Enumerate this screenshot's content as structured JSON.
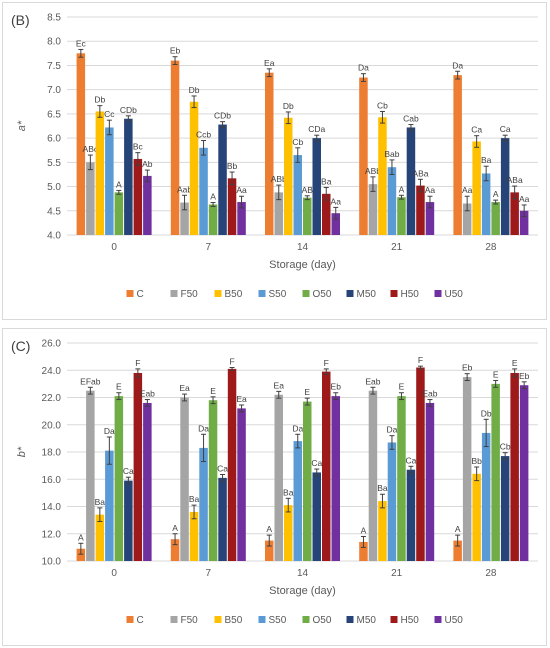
{
  "colors": {
    "C": "#ED7D31",
    "F50": "#A5A5A5",
    "B50": "#FFC000",
    "S50": "#5B9BD5",
    "O50": "#70AD47",
    "M50": "#264478",
    "H50": "#9E1A1A",
    "U50": "#7030A0",
    "grid": "#d9d9d9",
    "text": "#595959",
    "letter": "#404040"
  },
  "chart_data": [
    {
      "type": "bar",
      "panel_label": "(B)",
      "ylabel": "a*",
      "xlabel": "Storage (day)",
      "ylim": [
        4.0,
        8.5
      ],
      "ytick_step": 0.5,
      "ytick_labels": [
        "4.0",
        "4.5",
        "5.0",
        "5.5",
        "6.0",
        "6.5",
        "7.0",
        "7.5",
        "8.0",
        "8.5"
      ],
      "grid": true,
      "legend_position": "bottom",
      "categories": [
        "0",
        "7",
        "14",
        "21",
        "28"
      ],
      "series": [
        {
          "name": "C",
          "values": [
            7.75,
            7.6,
            7.35,
            7.25,
            7.3
          ],
          "errors": [
            0.08,
            0.08,
            0.08,
            0.08,
            0.08
          ],
          "labels": [
            "Ec",
            "Eb",
            "Ea",
            "Da",
            "Da"
          ]
        },
        {
          "name": "F50",
          "values": [
            5.5,
            4.67,
            4.88,
            5.05,
            4.65
          ],
          "errors": [
            0.15,
            0.15,
            0.15,
            0.15,
            0.15
          ],
          "labels": [
            "ABc",
            "Aab",
            "ABb",
            "ABb",
            "Aa"
          ]
        },
        {
          "name": "B50",
          "values": [
            6.55,
            6.75,
            6.42,
            6.43,
            5.93
          ],
          "errors": [
            0.12,
            0.12,
            0.12,
            0.12,
            0.12
          ],
          "labels": [
            "Db",
            "Db",
            "Db",
            "Cb",
            "Ca"
          ]
        },
        {
          "name": "S50",
          "values": [
            6.22,
            5.8,
            5.65,
            5.4,
            5.27
          ],
          "errors": [
            0.15,
            0.15,
            0.15,
            0.15,
            0.15
          ],
          "labels": [
            "Cc",
            "Ccb",
            "Cb",
            "Bab",
            "Ba"
          ]
        },
        {
          "name": "O50",
          "values": [
            4.88,
            4.63,
            4.77,
            4.78,
            4.68
          ],
          "errors": [
            0.04,
            0.04,
            0.04,
            0.04,
            0.04
          ],
          "labels": [
            "A",
            "A",
            "AB",
            "A",
            "A"
          ]
        },
        {
          "name": "M50",
          "values": [
            6.4,
            6.28,
            6.0,
            6.22,
            6.0
          ],
          "errors": [
            0.06,
            0.06,
            0.06,
            0.06,
            0.06
          ],
          "labels": [
            "CDb",
            "CDb",
            "CDa",
            "Cab",
            "Ca"
          ]
        },
        {
          "name": "H50",
          "values": [
            5.57,
            5.17,
            4.85,
            5.02,
            4.88
          ],
          "errors": [
            0.13,
            0.13,
            0.13,
            0.13,
            0.13
          ],
          "labels": [
            "Bc",
            "Bb",
            "Ba",
            "ABa",
            "ABa"
          ]
        },
        {
          "name": "U50",
          "values": [
            5.22,
            4.68,
            4.45,
            4.68,
            4.5
          ],
          "errors": [
            0.12,
            0.12,
            0.12,
            0.12,
            0.12
          ],
          "labels": [
            "Ab",
            "Aa",
            "Aa",
            "Aa",
            "Aa"
          ]
        }
      ]
    },
    {
      "type": "bar",
      "panel_label": "(C)",
      "ylabel": "b*",
      "xlabel": "Storage (day)",
      "ylim": [
        10.0,
        26.0
      ],
      "ytick_step": 2.0,
      "ytick_labels": [
        "10.0",
        "12.0",
        "14.0",
        "16.0",
        "18.0",
        "20.0",
        "22.0",
        "24.0",
        "26.0"
      ],
      "grid": true,
      "legend_position": "bottom",
      "categories": [
        "0",
        "7",
        "14",
        "21",
        "28"
      ],
      "series": [
        {
          "name": "C",
          "values": [
            10.9,
            11.6,
            11.5,
            11.4,
            11.5
          ],
          "errors": [
            0.4,
            0.4,
            0.4,
            0.4,
            0.4
          ],
          "labels": [
            "A",
            "A",
            "A",
            "A",
            "A"
          ]
        },
        {
          "name": "F50",
          "values": [
            22.5,
            22.0,
            22.2,
            22.5,
            23.5
          ],
          "errors": [
            0.25,
            0.25,
            0.25,
            0.25,
            0.25
          ],
          "labels": [
            "EFab",
            "Ea",
            "Ea",
            "Eab",
            "Eb"
          ]
        },
        {
          "name": "B50",
          "values": [
            13.4,
            13.6,
            14.1,
            14.4,
            16.4
          ],
          "errors": [
            0.5,
            0.5,
            0.5,
            0.5,
            0.5
          ],
          "labels": [
            "Ba",
            "Ba",
            "Ba",
            "Ba",
            "Bb"
          ]
        },
        {
          "name": "S50",
          "values": [
            18.1,
            18.3,
            18.8,
            18.7,
            19.4
          ],
          "errors": [
            1.0,
            1.0,
            0.5,
            0.5,
            1.0
          ],
          "labels": [
            "Da",
            "Da",
            "Da",
            "Da",
            "Db"
          ]
        },
        {
          "name": "O50",
          "values": [
            22.1,
            21.8,
            21.7,
            22.1,
            23.0
          ],
          "errors": [
            0.25,
            0.25,
            0.25,
            0.25,
            0.25
          ],
          "labels": [
            "E",
            "E",
            "E",
            "E",
            "E"
          ]
        },
        {
          "name": "M50",
          "values": [
            15.9,
            16.1,
            16.5,
            16.7,
            17.7
          ],
          "errors": [
            0.25,
            0.25,
            0.25,
            0.25,
            0.25
          ],
          "labels": [
            "Ca",
            "Ca",
            "Ca",
            "Ca",
            "Cb"
          ]
        },
        {
          "name": "H50",
          "values": [
            23.8,
            24.1,
            23.9,
            24.2,
            23.8
          ],
          "errors": [
            0.3,
            0.1,
            0.2,
            0.1,
            0.3
          ],
          "labels": [
            "F",
            "F",
            "F",
            "F",
            "E"
          ]
        },
        {
          "name": "U50",
          "values": [
            21.6,
            21.2,
            22.1,
            21.6,
            22.9
          ],
          "errors": [
            0.25,
            0.25,
            0.25,
            0.25,
            0.25
          ],
          "labels": [
            "Eab",
            "Ea",
            "Eb",
            "Eab",
            "Eb"
          ]
        }
      ]
    }
  ]
}
